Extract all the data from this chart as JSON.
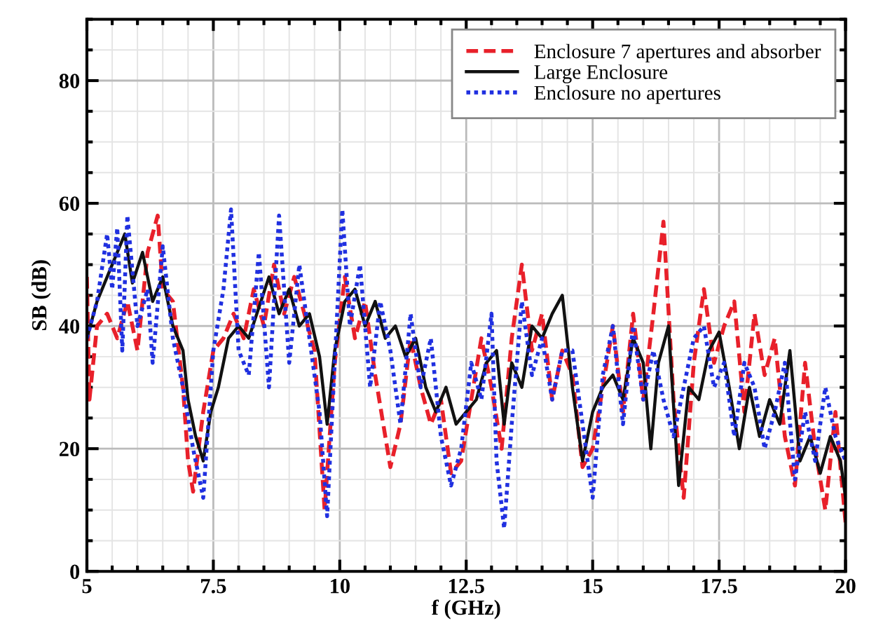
{
  "chart_data": {
    "type": "line",
    "xlabel": "f (GHz)",
    "ylabel": "SB (dB)",
    "xlim": [
      5,
      20
    ],
    "ylim": [
      0,
      90
    ],
    "xticks": [
      5,
      {
        "value": 7.5,
        "label": "7.5"
      },
      10,
      {
        "value": 12.5,
        "label": "12.5"
      },
      15,
      {
        "value": 17.5,
        "label": "17.5"
      },
      20
    ],
    "yticks": [
      0,
      20,
      40,
      60,
      80
    ],
    "grid": true,
    "legend": "top right",
    "series": [
      {
        "name": "Enclosure 7 apertures and absorber",
        "color": "#e8202a",
        "line_style": "dashed",
        "x": [
          5.0,
          5.05,
          5.2,
          5.4,
          5.6,
          5.8,
          6.0,
          6.2,
          6.4,
          6.5,
          6.7,
          6.9,
          7.0,
          7.1,
          7.3,
          7.5,
          7.7,
          7.9,
          8.1,
          8.3,
          8.5,
          8.7,
          8.9,
          9.1,
          9.3,
          9.5,
          9.7,
          9.9,
          10.1,
          10.3,
          10.5,
          10.7,
          10.9,
          11.0,
          11.2,
          11.4,
          11.6,
          11.8,
          12.0,
          12.2,
          12.4,
          12.6,
          12.8,
          13.0,
          13.2,
          13.4,
          13.6,
          13.8,
          14.0,
          14.2,
          14.4,
          14.6,
          14.8,
          15.0,
          15.2,
          15.4,
          15.6,
          15.8,
          16.0,
          16.2,
          16.4,
          16.6,
          16.8,
          17.0,
          17.2,
          17.4,
          17.6,
          17.8,
          18.0,
          18.2,
          18.4,
          18.6,
          18.8,
          19.0,
          19.2,
          19.4,
          19.6,
          19.8,
          20.0
        ],
        "values": [
          48,
          28,
          40,
          42,
          38,
          44,
          36,
          52,
          58,
          46,
          44,
          30,
          18,
          13,
          26,
          36,
          38,
          42,
          38,
          46,
          40,
          50,
          42,
          48,
          42,
          36,
          10,
          34,
          48,
          38,
          44,
          32,
          22,
          17,
          24,
          38,
          30,
          24,
          28,
          16,
          18,
          28,
          38,
          30,
          20,
          38,
          50,
          36,
          42,
          28,
          36,
          32,
          17,
          20,
          30,
          40,
          26,
          42,
          28,
          42,
          57,
          28,
          12,
          34,
          46,
          34,
          40,
          44,
          26,
          42,
          32,
          38,
          22,
          14,
          34,
          20,
          10,
          26,
          8
        ]
      },
      {
        "name": "Large Enclosure",
        "color": "#111111",
        "line_style": "solid",
        "x": [
          5.0,
          5.2,
          5.4,
          5.6,
          5.75,
          5.9,
          6.1,
          6.3,
          6.5,
          6.7,
          6.9,
          7.0,
          7.15,
          7.3,
          7.45,
          7.6,
          7.8,
          8.0,
          8.2,
          8.4,
          8.6,
          8.8,
          9.0,
          9.2,
          9.4,
          9.6,
          9.75,
          9.9,
          10.1,
          10.3,
          10.5,
          10.7,
          10.9,
          11.1,
          11.3,
          11.5,
          11.7,
          11.9,
          12.1,
          12.3,
          12.5,
          12.7,
          12.9,
          13.1,
          13.25,
          13.4,
          13.6,
          13.8,
          14.0,
          14.2,
          14.4,
          14.6,
          14.8,
          15.0,
          15.2,
          15.4,
          15.6,
          15.8,
          16.0,
          16.15,
          16.3,
          16.5,
          16.7,
          16.9,
          17.1,
          17.3,
          17.5,
          17.7,
          17.9,
          18.1,
          18.3,
          18.5,
          18.7,
          18.9,
          19.1,
          19.3,
          19.5,
          19.7,
          19.9,
          20.0
        ],
        "values": [
          38,
          44,
          48,
          52,
          55,
          47,
          52,
          44,
          48,
          40,
          36,
          28,
          22,
          18,
          26,
          30,
          38,
          40,
          38,
          43,
          48,
          42,
          46,
          40,
          42,
          35,
          24,
          36,
          44,
          46,
          40,
          44,
          38,
          40,
          35,
          38,
          30,
          26,
          30,
          24,
          26,
          28,
          34,
          36,
          24,
          34,
          30,
          40,
          38,
          42,
          45,
          30,
          18,
          26,
          30,
          32,
          28,
          38,
          34,
          20,
          34,
          40,
          14,
          30,
          28,
          36,
          39,
          30,
          20,
          30,
          22,
          28,
          24,
          36,
          18,
          22,
          16,
          22,
          18,
          12
        ]
      },
      {
        "name": "Enclosure no apertures",
        "color": "#2030e0",
        "line_style": "dotted",
        "x": [
          5.0,
          5.2,
          5.4,
          5.5,
          5.6,
          5.7,
          5.8,
          6.0,
          6.2,
          6.3,
          6.5,
          6.7,
          6.9,
          7.1,
          7.3,
          7.5,
          7.7,
          7.85,
          8.0,
          8.2,
          8.4,
          8.6,
          8.8,
          9.0,
          9.2,
          9.4,
          9.6,
          9.75,
          9.9,
          10.05,
          10.2,
          10.4,
          10.6,
          10.8,
          11.0,
          11.2,
          11.4,
          11.6,
          11.8,
          12.0,
          12.2,
          12.4,
          12.6,
          12.8,
          13.0,
          13.1,
          13.25,
          13.4,
          13.6,
          13.8,
          14.0,
          14.2,
          14.4,
          14.6,
          14.8,
          15.0,
          15.2,
          15.4,
          15.6,
          15.8,
          16.0,
          16.2,
          16.4,
          16.6,
          16.8,
          17.0,
          17.2,
          17.4,
          17.6,
          17.8,
          18.0,
          18.2,
          18.4,
          18.6,
          18.8,
          19.0,
          19.2,
          19.4,
          19.6,
          19.8,
          20.0
        ],
        "values": [
          38,
          44,
          55,
          46,
          56,
          36,
          58,
          40,
          46,
          34,
          53,
          38,
          30,
          20,
          12,
          36,
          46,
          59,
          36,
          32,
          52,
          30,
          58,
          34,
          50,
          38,
          26,
          9,
          34,
          59,
          40,
          50,
          30,
          44,
          36,
          24,
          42,
          30,
          38,
          22,
          14,
          20,
          34,
          28,
          42,
          18,
          7,
          24,
          44,
          32,
          38,
          28,
          36,
          36,
          24,
          12,
          32,
          40,
          24,
          40,
          28,
          36,
          28,
          22,
          30,
          38,
          40,
          30,
          34,
          22,
          34,
          30,
          20,
          26,
          34,
          15,
          26,
          18,
          30,
          22,
          18
        ]
      }
    ]
  }
}
